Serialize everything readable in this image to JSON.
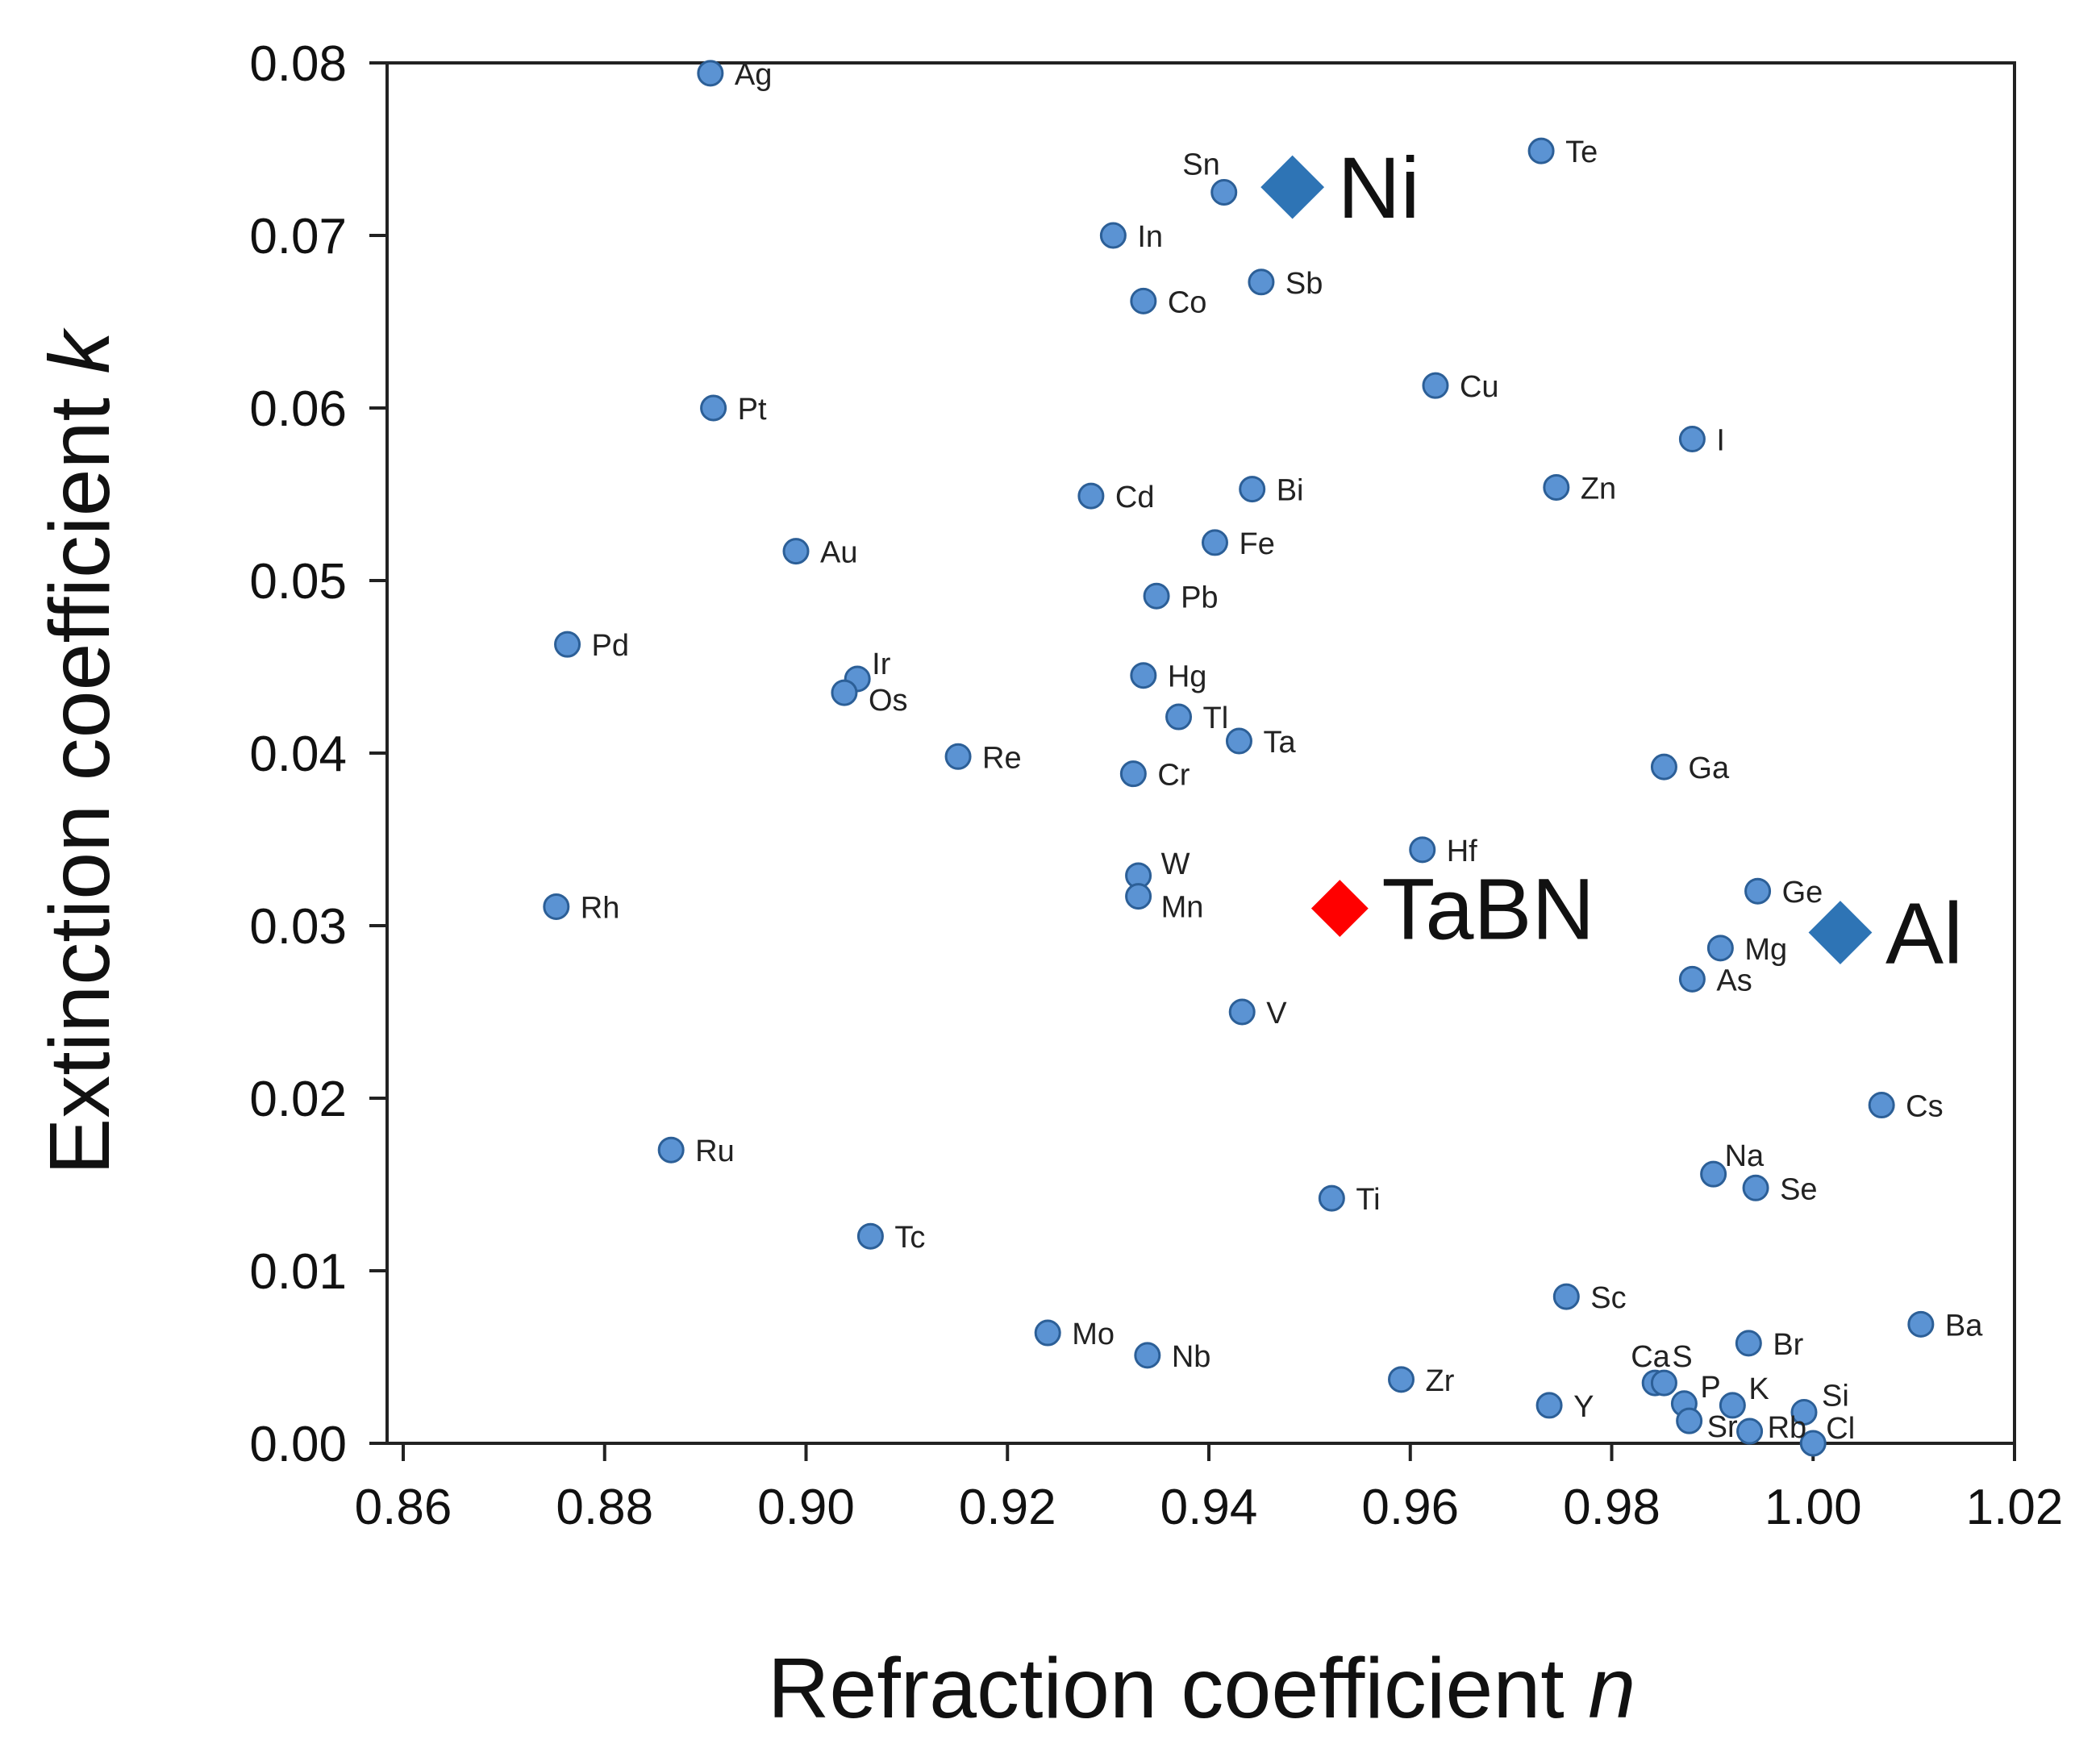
{
  "chart_data": {
    "type": "scatter",
    "title": "",
    "xlabel": "Refraction coefficient",
    "xlabel_var": "n",
    "ylabel": "Extinction coefficient",
    "ylabel_var": "k",
    "xlim": [
      0.86,
      1.02
    ],
    "ylim": [
      0.0,
      0.08
    ],
    "x_ticks": [
      "0.86",
      "0.88",
      "0.90",
      "0.92",
      "0.94",
      "0.96",
      "0.98",
      "1.00",
      "1.02"
    ],
    "y_ticks": [
      "0.00",
      "0.01",
      "0.02",
      "0.03",
      "0.04",
      "0.05",
      "0.06",
      "0.07",
      "0.08"
    ],
    "grid": false,
    "colors": {
      "point_fill": "#5b93d3",
      "point_stroke": "#2c5f97",
      "highlight": "#2e74b5",
      "tabn": "#ff0000"
    },
    "points": [
      {
        "label": "Ag",
        "n": 0.8905,
        "k": 0.0794
      },
      {
        "label": "Te",
        "n": 0.973,
        "k": 0.0749
      },
      {
        "label": "Sn",
        "n": 0.9415,
        "k": 0.0725
      },
      {
        "label": "In",
        "n": 0.9305,
        "k": 0.07
      },
      {
        "label": "Sb",
        "n": 0.9452,
        "k": 0.0673
      },
      {
        "label": "Co",
        "n": 0.9335,
        "k": 0.0662
      },
      {
        "label": "Cu",
        "n": 0.9625,
        "k": 0.0613
      },
      {
        "label": "Pt",
        "n": 0.8908,
        "k": 0.06
      },
      {
        "label": "I",
        "n": 0.988,
        "k": 0.0582
      },
      {
        "label": "Zn",
        "n": 0.9745,
        "k": 0.0554
      },
      {
        "label": "Bi",
        "n": 0.9443,
        "k": 0.0553
      },
      {
        "label": "Cd",
        "n": 0.9283,
        "k": 0.0549
      },
      {
        "label": "Fe",
        "n": 0.9406,
        "k": 0.0522
      },
      {
        "label": "Au",
        "n": 0.899,
        "k": 0.0517
      },
      {
        "label": "Pb",
        "n": 0.9348,
        "k": 0.0491
      },
      {
        "label": "Pd",
        "n": 0.8763,
        "k": 0.0463
      },
      {
        "label": "Hg",
        "n": 0.9335,
        "k": 0.0445
      },
      {
        "label": "Ir",
        "n": 0.9051,
        "k": 0.0443
      },
      {
        "label": "Os",
        "n": 0.9038,
        "k": 0.0435
      },
      {
        "label": "Tl",
        "n": 0.937,
        "k": 0.0421
      },
      {
        "label": "Ta",
        "n": 0.943,
        "k": 0.0407
      },
      {
        "label": "Re",
        "n": 0.9151,
        "k": 0.0398
      },
      {
        "label": "Ga",
        "n": 0.9852,
        "k": 0.0392
      },
      {
        "label": "Cr",
        "n": 0.9325,
        "k": 0.0388
      },
      {
        "label": "Hf",
        "n": 0.9612,
        "k": 0.0344
      },
      {
        "label": "W",
        "n": 0.933,
        "k": 0.0329
      },
      {
        "label": "Ge",
        "n": 0.9945,
        "k": 0.032
      },
      {
        "label": "Mn",
        "n": 0.933,
        "k": 0.0317
      },
      {
        "label": "Rh",
        "n": 0.8752,
        "k": 0.0311
      },
      {
        "label": "Mg",
        "n": 0.9908,
        "k": 0.0287
      },
      {
        "label": "As",
        "n": 0.988,
        "k": 0.0269
      },
      {
        "label": "V",
        "n": 0.9433,
        "k": 0.025
      },
      {
        "label": "Cs",
        "n": 1.0068,
        "k": 0.0196
      },
      {
        "label": "Ru",
        "n": 0.8866,
        "k": 0.017
      },
      {
        "label": "Na",
        "n": 0.9901,
        "k": 0.0156
      },
      {
        "label": "Se",
        "n": 0.9943,
        "k": 0.0148
      },
      {
        "label": "Ti",
        "n": 0.9522,
        "k": 0.0142
      },
      {
        "label": "Tc",
        "n": 0.9064,
        "k": 0.012
      },
      {
        "label": "Sc",
        "n": 0.9755,
        "k": 0.0085
      },
      {
        "label": "Ba",
        "n": 1.0107,
        "k": 0.0069
      },
      {
        "label": "Mo",
        "n": 0.924,
        "k": 0.0064
      },
      {
        "label": "Br",
        "n": 0.9936,
        "k": 0.0058
      },
      {
        "label": "Nb",
        "n": 0.9339,
        "k": 0.0051
      },
      {
        "label": "Zr",
        "n": 0.9591,
        "k": 0.0037
      },
      {
        "label": "Ca",
        "n": 0.9843,
        "k": 0.0035
      },
      {
        "label": "S",
        "n": 0.9852,
        "k": 0.0035
      },
      {
        "label": "P",
        "n": 0.9872,
        "k": 0.0023
      },
      {
        "label": "K",
        "n": 0.992,
        "k": 0.0022
      },
      {
        "label": "Y",
        "n": 0.9738,
        "k": 0.0022
      },
      {
        "label": "Si",
        "n": 0.9991,
        "k": 0.0018
      },
      {
        "label": "Sr",
        "n": 0.9877,
        "k": 0.0013
      },
      {
        "label": "Rb",
        "n": 0.9937,
        "k": 0.0007
      },
      {
        "label": "Cl",
        "n": 1.0,
        "k": 0.0
      }
    ],
    "highlights": [
      {
        "label": "Ni",
        "n": 0.9483,
        "k": 0.0728,
        "color": "#2e74b5"
      },
      {
        "label": "Al",
        "n": 1.0027,
        "k": 0.0296,
        "color": "#2e74b5"
      },
      {
        "label": "TaBN",
        "n": 0.953,
        "k": 0.031,
        "color": "#ff0000"
      }
    ]
  }
}
